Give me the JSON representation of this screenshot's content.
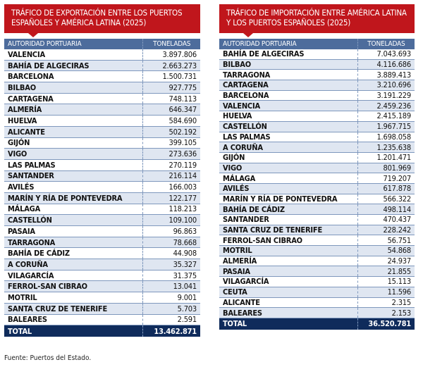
{
  "export_table": {
    "title": "TRÁFICO DE EXPORTACIÓN ENTRE LOS PUERTOS ESPAÑOLES Y AMÉRICA LATINA (2025)",
    "columns": [
      "AUTORIDAD PORTUARIA",
      "TONELADAS"
    ],
    "rows": [
      [
        "VALENCIA",
        "3.897.806"
      ],
      [
        "BAHÍA DE ALGECIRAS",
        "2.663.273"
      ],
      [
        "BARCELONA",
        "1.500.731"
      ],
      [
        "BILBAO",
        "927.775"
      ],
      [
        "CARTAGENA",
        "748.113"
      ],
      [
        "ALMERÍA",
        "646.347"
      ],
      [
        "HUELVA",
        "584.690"
      ],
      [
        "ALICANTE",
        "502.192"
      ],
      [
        "GIJÓN",
        "399.105"
      ],
      [
        "VIGO",
        "273.636"
      ],
      [
        "LAS PALMAS",
        "270.119"
      ],
      [
        "SANTANDER",
        "216.114"
      ],
      [
        "AVILÉS",
        "166.003"
      ],
      [
        "MARÍN Y RÍA DE PONTEVEDRA",
        "122.177"
      ],
      [
        "MÁLAGA",
        "118.213"
      ],
      [
        "CASTELLÓN",
        "109.100"
      ],
      [
        "PASAIA",
        "96.863"
      ],
      [
        "TARRAGONA",
        "78.668"
      ],
      [
        "BAHÍA DE CÁDIZ",
        "44.908"
      ],
      [
        "A CORUÑA",
        "35.327"
      ],
      [
        "VILAGARCÍA",
        "31.375"
      ],
      [
        "FERROL-SAN CIBRAO",
        "13.041"
      ],
      [
        "MOTRIL",
        "9.001"
      ],
      [
        "SANTA CRUZ DE TENERIFE",
        "5.703"
      ],
      [
        "BALEARES",
        "2.591"
      ]
    ],
    "total": [
      "TOTAL",
      "13.462.871"
    ]
  },
  "import_table": {
    "title": "TRÁFICO DE IMPORTACIÓN ENTRE AMÉRICA LATINA Y LOS PUERTOS ESPAÑOLES (2025)",
    "columns": [
      "AUTORIDAD PORTUARIA",
      "TONELADAS"
    ],
    "rows": [
      [
        "BAHÍA DE ALGECIRAS",
        "7.043.693"
      ],
      [
        "BILBAO",
        "4.116.686"
      ],
      [
        "TARRAGONA",
        "3.889.413"
      ],
      [
        "CARTAGENA",
        "3.210.696"
      ],
      [
        "BARCELONA",
        "3.191.229"
      ],
      [
        "VALENCIA",
        "2.459.236"
      ],
      [
        "HUELVA",
        "2.415.189"
      ],
      [
        "CASTELLÓN",
        "1.967.715"
      ],
      [
        "LAS PALMAS",
        "1.698.058"
      ],
      [
        "A CORUÑA",
        "1.235.638"
      ],
      [
        "GIJÓN",
        "1.201.471"
      ],
      [
        "VIGO",
        "801.969"
      ],
      [
        "MÁLAGA",
        "719.207"
      ],
      [
        "AVILÉS",
        "617.878"
      ],
      [
        "MARÍN Y RÍA DE PONTEVEDRA",
        "566.322"
      ],
      [
        "BAHÍA DE CÁDIZ",
        "498.114"
      ],
      [
        "SANTANDER",
        "470.437"
      ],
      [
        "SANTA CRUZ DE TENERIFE",
        "228.242"
      ],
      [
        "FERROL-SAN CIBRAO",
        "56.751"
      ],
      [
        "MOTRIL",
        "54.868"
      ],
      [
        "ALMERÍA",
        "24.937"
      ],
      [
        "PASAIA",
        "21.855"
      ],
      [
        "VILAGARCÍA",
        "15.113"
      ],
      [
        "CEUTA",
        "11.596"
      ],
      [
        "ALICANTE",
        "2.315"
      ],
      [
        "BALEARES",
        "2.153"
      ]
    ],
    "total": [
      "TOTAL",
      "36.520.781"
    ]
  },
  "source": "Fuente: Puertos del Estado.",
  "colors": {
    "title_bg": "#c0161c",
    "header_bg": "#4d6c9c",
    "total_bg": "#0f2b5b",
    "alt_row": "#dfe6f1"
  }
}
